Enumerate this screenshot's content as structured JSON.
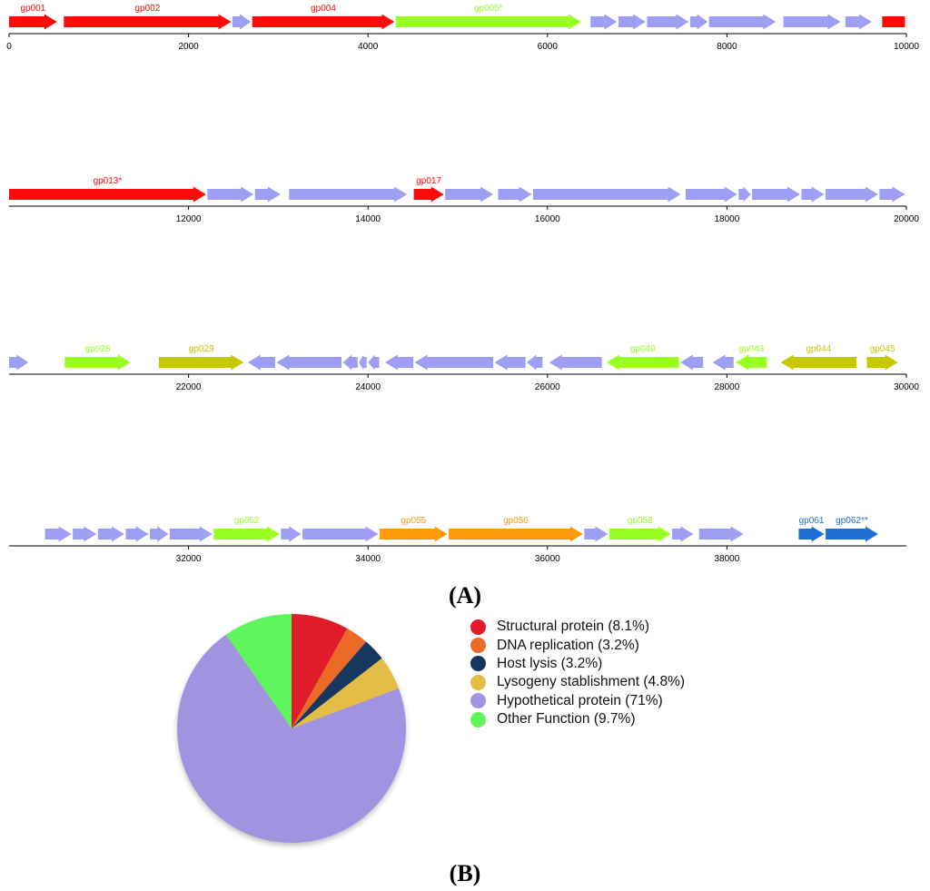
{
  "colors": {
    "red": "#ff0a0a",
    "lime": "#99ff22",
    "olive": "#c8c800",
    "lavender": "#9e9ef5",
    "orange": "#ff9a0a",
    "blue": "#1f6fd0",
    "axis": "#000000"
  },
  "genome_map": {
    "rows": [
      {
        "range": [
          0,
          10000
        ],
        "ticks": [
          0,
          2000,
          4000,
          6000,
          8000,
          10000
        ],
        "genes": [
          {
            "s": 0,
            "e": 550,
            "dir": 1,
            "c": "red",
            "label": "gp001"
          },
          {
            "s": 610,
            "e": 2490,
            "dir": 1,
            "c": "red",
            "label": "gp002"
          },
          {
            "s": 2490,
            "e": 2710,
            "dir": 1,
            "c": "lavender"
          },
          {
            "s": 2710,
            "e": 4310,
            "dir": 1,
            "c": "red",
            "label": "gp004"
          },
          {
            "s": 4310,
            "e": 6390,
            "dir": 1,
            "c": "lime",
            "label": "gp005*"
          },
          {
            "s": 6480,
            "e": 6790,
            "dir": 1,
            "c": "lavender"
          },
          {
            "s": 6790,
            "e": 7110,
            "dir": 1,
            "c": "lavender"
          },
          {
            "s": 7110,
            "e": 7590,
            "dir": 1,
            "c": "lavender"
          },
          {
            "s": 7590,
            "e": 7800,
            "dir": 1,
            "c": "lavender"
          },
          {
            "s": 7800,
            "e": 8560,
            "dir": 1,
            "c": "lavender"
          },
          {
            "s": 8630,
            "e": 9280,
            "dir": 1,
            "c": "lavender"
          },
          {
            "s": 9320,
            "e": 9630,
            "dir": 1,
            "c": "lavender"
          },
          {
            "s": 9730,
            "e": 10000,
            "dir": 0,
            "c": "red"
          }
        ]
      },
      {
        "range": [
          10000,
          20000
        ],
        "ticks": [
          12000,
          14000,
          16000,
          18000,
          20000
        ],
        "genes": [
          {
            "s": 10000,
            "e": 12210,
            "dir": 1,
            "c": "red",
            "label": "gp013*"
          },
          {
            "s": 12210,
            "e": 12740,
            "dir": 1,
            "c": "lavender"
          },
          {
            "s": 12740,
            "e": 13040,
            "dir": 1,
            "c": "lavender"
          },
          {
            "s": 13120,
            "e": 14450,
            "dir": 1,
            "c": "lavender"
          },
          {
            "s": 14510,
            "e": 14860,
            "dir": 1,
            "c": "red",
            "label": "gp017"
          },
          {
            "s": 14860,
            "e": 15410,
            "dir": 1,
            "c": "lavender"
          },
          {
            "s": 15450,
            "e": 15840,
            "dir": 1,
            "c": "lavender"
          },
          {
            "s": 15840,
            "e": 17500,
            "dir": 1,
            "c": "lavender"
          },
          {
            "s": 17540,
            "e": 18130,
            "dir": 1,
            "c": "lavender"
          },
          {
            "s": 18130,
            "e": 18280,
            "dir": 1,
            "c": "lavender"
          },
          {
            "s": 18280,
            "e": 18830,
            "dir": 1,
            "c": "lavender"
          },
          {
            "s": 18830,
            "e": 19100,
            "dir": 1,
            "c": "lavender"
          },
          {
            "s": 19100,
            "e": 19700,
            "dir": 1,
            "c": "lavender"
          },
          {
            "s": 19700,
            "e": 20000,
            "dir": 1,
            "c": "lavender"
          }
        ]
      },
      {
        "range": [
          20000,
          30000
        ],
        "ticks": [
          22000,
          24000,
          26000,
          28000,
          30000
        ],
        "genes": [
          {
            "s": 20000,
            "e": 20230,
            "dir": 1,
            "c": "lavender"
          },
          {
            "s": 20620,
            "e": 21370,
            "dir": 1,
            "c": "lime",
            "label": "gp028"
          },
          {
            "s": 21670,
            "e": 22630,
            "dir": 1,
            "c": "olive",
            "label": "gp029"
          },
          {
            "s": 22660,
            "e": 22980,
            "dir": -1,
            "c": "lavender"
          },
          {
            "s": 22980,
            "e": 23720,
            "dir": -1,
            "c": "lavender"
          },
          {
            "s": 23720,
            "e": 23900,
            "dir": -1,
            "c": "lavender"
          },
          {
            "s": 23900,
            "e": 24000,
            "dir": -1,
            "c": "lavender"
          },
          {
            "s": 24000,
            "e": 24140,
            "dir": -1,
            "c": "lavender"
          },
          {
            "s": 24190,
            "e": 24520,
            "dir": -1,
            "c": "lavender"
          },
          {
            "s": 24520,
            "e": 25410,
            "dir": -1,
            "c": "lavender"
          },
          {
            "s": 25410,
            "e": 25770,
            "dir": -1,
            "c": "lavender"
          },
          {
            "s": 25770,
            "e": 25960,
            "dir": -1,
            "c": "lavender"
          },
          {
            "s": 26020,
            "e": 26620,
            "dir": -1,
            "c": "lavender"
          },
          {
            "s": 26660,
            "e": 27480,
            "dir": -1,
            "c": "lime",
            "label": "gp040"
          },
          {
            "s": 27480,
            "e": 27750,
            "dir": -1,
            "c": "lavender"
          },
          {
            "s": 27840,
            "e": 28090,
            "dir": -1,
            "c": "lavender"
          },
          {
            "s": 28100,
            "e": 28460,
            "dir": -1,
            "c": "lime",
            "label": "gp043"
          },
          {
            "s": 28600,
            "e": 29460,
            "dir": -1,
            "c": "olive",
            "label": "gp044"
          },
          {
            "s": 29560,
            "e": 29920,
            "dir": 1,
            "c": "olive",
            "label": "gp045"
          }
        ]
      },
      {
        "range": [
          30000,
          40000
        ],
        "ticks": [
          32000,
          34000,
          36000,
          38000
        ],
        "genes": [
          {
            "s": 30400,
            "e": 30710,
            "dir": 1,
            "c": "lavender"
          },
          {
            "s": 30710,
            "e": 30990,
            "dir": 1,
            "c": "lavender"
          },
          {
            "s": 30990,
            "e": 31300,
            "dir": 1,
            "c": "lavender"
          },
          {
            "s": 31300,
            "e": 31570,
            "dir": 1,
            "c": "lavender"
          },
          {
            "s": 31570,
            "e": 31790,
            "dir": 1,
            "c": "lavender"
          },
          {
            "s": 31790,
            "e": 32280,
            "dir": 1,
            "c": "lavender"
          },
          {
            "s": 32280,
            "e": 33030,
            "dir": 1,
            "c": "lime",
            "label": "gp052"
          },
          {
            "s": 33030,
            "e": 33270,
            "dir": 1,
            "c": "lavender"
          },
          {
            "s": 33270,
            "e": 34130,
            "dir": 1,
            "c": "lavender"
          },
          {
            "s": 34130,
            "e": 34900,
            "dir": 1,
            "c": "orange",
            "label": "gp055"
          },
          {
            "s": 34900,
            "e": 36410,
            "dir": 1,
            "c": "orange",
            "label": "gp056"
          },
          {
            "s": 36410,
            "e": 36690,
            "dir": 1,
            "c": "lavender"
          },
          {
            "s": 36690,
            "e": 37390,
            "dir": 1,
            "c": "lime",
            "label": "gp058"
          },
          {
            "s": 37390,
            "e": 37640,
            "dir": 1,
            "c": "lavender"
          },
          {
            "s": 37690,
            "e": 38200,
            "dir": 1,
            "c": "lavender"
          },
          {
            "s": 38800,
            "e": 39100,
            "dir": 1,
            "c": "blue",
            "label": "gp061"
          },
          {
            "s": 39100,
            "e": 39700,
            "dir": 1,
            "c": "blue",
            "label": "gp062**"
          }
        ]
      }
    ]
  },
  "panel_labels": {
    "a": "(A)",
    "b": "(B)"
  },
  "chart_data": {
    "type": "pie",
    "slices": [
      {
        "label": "Structural protein (8.1%)",
        "value": 8.1,
        "color": "#e11b2a"
      },
      {
        "label": "DNA replication (3.2%)",
        "value": 3.2,
        "color": "#ea6a25"
      },
      {
        "label": "Host lysis (3.2%)",
        "value": 3.2,
        "color": "#17375e"
      },
      {
        "label": "Lysogeny stablishment (4.8%)",
        "value": 4.8,
        "color": "#e3bd45"
      },
      {
        "label": "Hypothetical protein (71%)",
        "value": 71,
        "color": "#a293e0"
      },
      {
        "label": "Other Function (9.7%)",
        "value": 9.7,
        "color": "#5ff55b"
      }
    ],
    "legend_position": "right"
  }
}
